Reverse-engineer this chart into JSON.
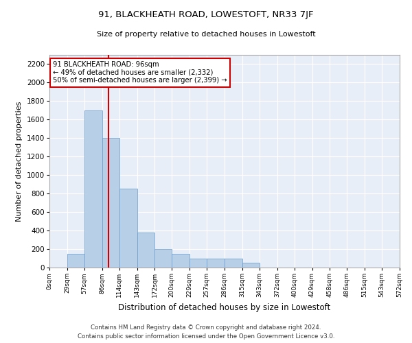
{
  "title": "91, BLACKHEATH ROAD, LOWESTOFT, NR33 7JF",
  "subtitle": "Size of property relative to detached houses in Lowestoft",
  "xlabel": "Distribution of detached houses by size in Lowestoft",
  "ylabel": "Number of detached properties",
  "bar_color": "#b8cfe8",
  "bar_edge_color": "#6699cc",
  "background_color": "#e8eef8",
  "grid_color": "#ffffff",
  "annotation_box_color": "#cc0000",
  "annotation_line1": "91 BLACKHEATH ROAD: 96sqm",
  "annotation_line2": "← 49% of detached houses are smaller (2,332)",
  "annotation_line3": "50% of semi-detached houses are larger (2,399) →",
  "vline_x": 96,
  "vline_color": "#cc0000",
  "bin_edges": [
    0,
    29,
    57,
    86,
    114,
    143,
    172,
    200,
    229,
    257,
    286,
    315,
    343,
    372,
    400,
    429,
    458,
    486,
    515,
    543,
    572
  ],
  "bar_heights": [
    0,
    150,
    1700,
    1400,
    850,
    380,
    200,
    150,
    100,
    100,
    100,
    50,
    0,
    0,
    0,
    0,
    0,
    0,
    0,
    0
  ],
  "ylim": [
    0,
    2300
  ],
  "yticks": [
    0,
    200,
    400,
    600,
    800,
    1000,
    1200,
    1400,
    1600,
    1800,
    2000,
    2200
  ],
  "footer_line1": "Contains HM Land Registry data © Crown copyright and database right 2024.",
  "footer_line2": "Contains public sector information licensed under the Open Government Licence v3.0.",
  "figsize": [
    6.0,
    5.0
  ],
  "dpi": 100
}
